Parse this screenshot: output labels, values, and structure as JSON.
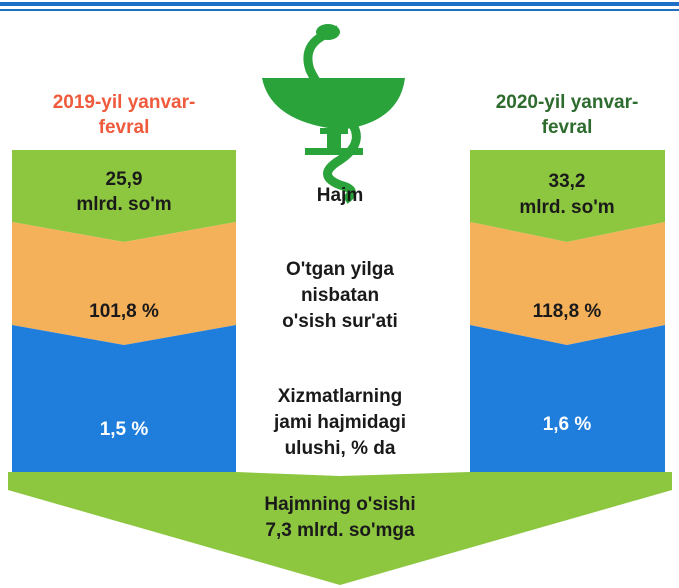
{
  "left": {
    "title": [
      "2019-yil yanvar-",
      "fevral"
    ],
    "volume": [
      "25,9",
      "mlrd. so'm"
    ],
    "growth": "101,8 %",
    "share": "1,5 %"
  },
  "right": {
    "title": [
      "2020-yil yanvar-",
      "fevral"
    ],
    "volume": [
      "33,2",
      "mlrd. so'm"
    ],
    "growth": "118,8 %",
    "share": "1,6 %"
  },
  "labels": {
    "volume": "Hajm",
    "growth": [
      "O'tgan yilga",
      "nisbatan",
      "o'sish sur'ati"
    ],
    "share": [
      "Xizmatlarning",
      "jami hajmidagi",
      "ulushi, % da"
    ]
  },
  "bottom": [
    "Hajmning o'sishi",
    "7,3 mlrd. so'mga"
  ]
}
